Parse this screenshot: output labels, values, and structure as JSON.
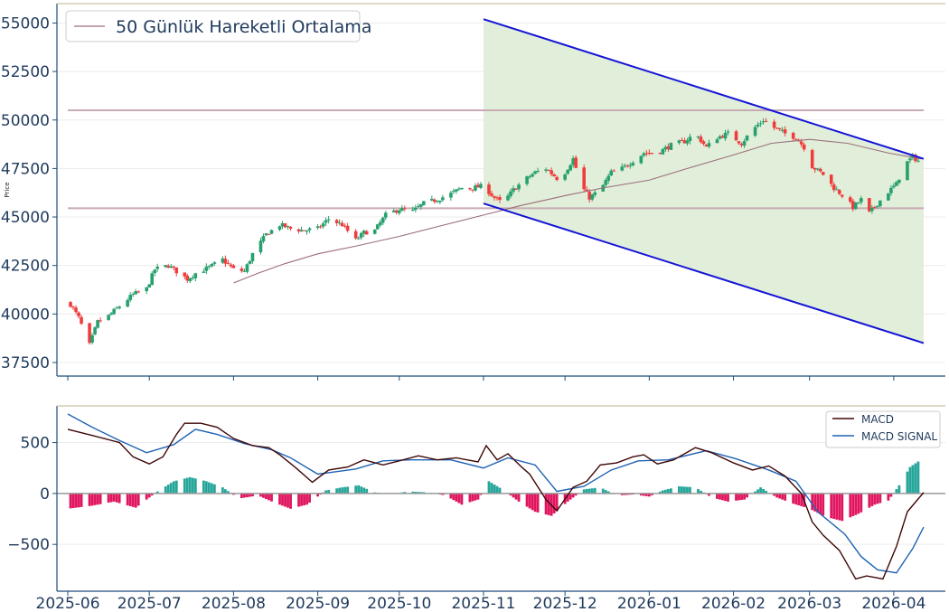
{
  "chart_data": [
    {
      "type": "candlestick",
      "ylabel": "Price",
      "ylim": [
        36800,
        56000
      ],
      "yticks": [
        37500,
        40000,
        42500,
        45000,
        47500,
        50000,
        52500,
        55000
      ],
      "ytick_labels": [
        "37500",
        "40000",
        "42500",
        "45000",
        "47500",
        "50000",
        "52500",
        "55000"
      ],
      "xrange": [
        "2025-05-28",
        "2026-04-20"
      ],
      "xticks": [
        "2025-06-01",
        "2025-07-01",
        "2025-08-01",
        "2025-09-01",
        "2025-10-01",
        "2025-11-01",
        "2025-12-01",
        "2026-01-01",
        "2026-02-01",
        "2026-03-01",
        "2026-04-01"
      ],
      "xtick_labels": [
        "2025-06",
        "2025-07",
        "2025-08",
        "2025-09",
        "2025-10",
        "2025-11",
        "2025-12",
        "2026-01",
        "2026-02",
        "2026-03",
        "2026-04"
      ],
      "legend": "50 Günlük Hareketli Ortalama",
      "legend_loc": "upper left",
      "close_path": [
        [
          "2025-06-02",
          40500
        ],
        [
          "2025-06-05",
          39800
        ],
        [
          "2025-06-09",
          38400
        ],
        [
          "2025-06-12",
          39600
        ],
        [
          "2025-06-16",
          39900
        ],
        [
          "2025-06-20",
          40400
        ],
        [
          "2025-06-25",
          41000
        ],
        [
          "2025-06-30",
          41300
        ],
        [
          "2025-07-03",
          42300
        ],
        [
          "2025-07-08",
          42500
        ],
        [
          "2025-07-11",
          42200
        ],
        [
          "2025-07-15",
          41800
        ],
        [
          "2025-07-18",
          42100
        ],
        [
          "2025-07-23",
          42400
        ],
        [
          "2025-07-28",
          42800
        ],
        [
          "2025-08-01",
          42300
        ],
        [
          "2025-08-05",
          42200
        ],
        [
          "2025-08-08",
          43100
        ],
        [
          "2025-08-13",
          44100
        ],
        [
          "2025-08-18",
          44600
        ],
        [
          "2025-08-22",
          44400
        ],
        [
          "2025-08-27",
          44300
        ],
        [
          "2025-09-01",
          44400
        ],
        [
          "2025-09-05",
          44900
        ],
        [
          "2025-09-10",
          44600
        ],
        [
          "2025-09-15",
          43800
        ],
        [
          "2025-09-18",
          44200
        ],
        [
          "2025-09-22",
          44300
        ],
        [
          "2025-09-26",
          45100
        ],
        [
          "2025-10-01",
          45400
        ],
        [
          "2025-10-06",
          45300
        ],
        [
          "2025-10-10",
          45700
        ],
        [
          "2025-10-15",
          45900
        ],
        [
          "2025-10-20",
          46200
        ],
        [
          "2025-10-24",
          46500
        ],
        [
          "2025-10-28",
          46500
        ],
        [
          "2025-11-01",
          46600
        ],
        [
          "2025-11-05",
          46000
        ],
        [
          "2025-11-08",
          45700
        ],
        [
          "2025-11-12",
          46400
        ],
        [
          "2025-11-16",
          46900
        ],
        [
          "2025-11-20",
          47300
        ],
        [
          "2025-11-24",
          47500
        ],
        [
          "2025-11-28",
          47000
        ],
        [
          "2025-12-01",
          47300
        ],
        [
          "2025-12-04",
          48000
        ],
        [
          "2025-12-07",
          46600
        ],
        [
          "2025-12-10",
          46000
        ],
        [
          "2025-12-14",
          46400
        ],
        [
          "2025-12-18",
          47300
        ],
        [
          "2025-12-22",
          47500
        ],
        [
          "2025-12-26",
          47900
        ],
        [
          "2025-12-30",
          48300
        ],
        [
          "2026-01-04",
          48300
        ],
        [
          "2026-01-09",
          48700
        ],
        [
          "2026-01-14",
          48900
        ],
        [
          "2026-01-18",
          49300
        ],
        [
          "2026-01-22",
          48600
        ],
        [
          "2026-01-26",
          49100
        ],
        [
          "2026-01-30",
          49300
        ],
        [
          "2026-02-04",
          48800
        ],
        [
          "2026-02-08",
          49500
        ],
        [
          "2026-02-12",
          50000
        ],
        [
          "2026-02-16",
          49600
        ],
        [
          "2026-02-20",
          49300
        ],
        [
          "2026-02-24",
          49100
        ],
        [
          "2026-02-27",
          48600
        ],
        [
          "2026-03-02",
          47600
        ],
        [
          "2026-03-06",
          47200
        ],
        [
          "2026-03-10",
          46500
        ],
        [
          "2026-03-14",
          46000
        ],
        [
          "2026-03-17",
          45500
        ],
        [
          "2026-03-20",
          45900
        ],
        [
          "2026-03-23",
          45200
        ],
        [
          "2026-03-26",
          45700
        ],
        [
          "2026-03-30",
          46300
        ],
        [
          "2026-04-02",
          46700
        ],
        [
          "2026-04-05",
          47700
        ],
        [
          "2026-04-08",
          48100
        ],
        [
          "2026-04-11",
          47800
        ]
      ],
      "moving_average_50": [
        [
          "2025-08-01",
          41600
        ],
        [
          "2025-08-10",
          42100
        ],
        [
          "2025-08-20",
          42600
        ],
        [
          "2025-09-01",
          43100
        ],
        [
          "2025-09-15",
          43500
        ],
        [
          "2025-10-01",
          44000
        ],
        [
          "2025-10-15",
          44500
        ],
        [
          "2025-11-01",
          45100
        ],
        [
          "2025-11-15",
          45600
        ],
        [
          "2025-12-01",
          46100
        ],
        [
          "2025-12-15",
          46500
        ],
        [
          "2026-01-01",
          46900
        ],
        [
          "2026-01-15",
          47500
        ],
        [
          "2026-02-01",
          48200
        ],
        [
          "2026-02-15",
          48800
        ],
        [
          "2026-03-01",
          49000
        ],
        [
          "2026-03-15",
          48800
        ],
        [
          "2026-03-30",
          48300
        ],
        [
          "2026-04-11",
          48000
        ]
      ],
      "horizontal_levels": [
        50500,
        45450
      ],
      "horizontal_levels_range": [
        "2025-06-01",
        "2026-04-12"
      ],
      "channel": {
        "upper": [
          [
            "2025-11-01",
            55200
          ],
          [
            "2026-04-12",
            48000
          ]
        ],
        "lower": [
          [
            "2025-11-01",
            45700
          ],
          [
            "2026-04-12",
            38500
          ]
        ],
        "fill_color": "#e1efda",
        "line_color": "#1414d6"
      },
      "colors": {
        "up": "#27a06e",
        "down": "#ef3d3d",
        "ma": "#9c6d7c",
        "level": "#c9aab5"
      }
    },
    {
      "type": "line",
      "ylim": [
        -960,
        860
      ],
      "yticks": [
        -500,
        0,
        500
      ],
      "ytick_labels": [
        "−500",
        "0",
        "500"
      ],
      "legend_loc": "upper right",
      "series": [
        {
          "name": "MACD",
          "color": "#3f0707",
          "points": [
            [
              "2025-06-01",
              630
            ],
            [
              "2025-06-10",
              570
            ],
            [
              "2025-06-20",
              500
            ],
            [
              "2025-06-25",
              360
            ],
            [
              "2025-07-01",
              290
            ],
            [
              "2025-07-06",
              360
            ],
            [
              "2025-07-11",
              580
            ],
            [
              "2025-07-14",
              690
            ],
            [
              "2025-07-20",
              690
            ],
            [
              "2025-07-26",
              650
            ],
            [
              "2025-08-01",
              540
            ],
            [
              "2025-08-08",
              470
            ],
            [
              "2025-08-14",
              450
            ],
            [
              "2025-08-18",
              380
            ],
            [
              "2025-08-24",
              250
            ],
            [
              "2025-08-30",
              110
            ],
            [
              "2025-09-05",
              230
            ],
            [
              "2025-09-12",
              260
            ],
            [
              "2025-09-18",
              330
            ],
            [
              "2025-09-25",
              280
            ],
            [
              "2025-10-01",
              320
            ],
            [
              "2025-10-08",
              370
            ],
            [
              "2025-10-15",
              330
            ],
            [
              "2025-10-22",
              350
            ],
            [
              "2025-10-30",
              310
            ],
            [
              "2025-11-02",
              470
            ],
            [
              "2025-11-06",
              330
            ],
            [
              "2025-11-10",
              390
            ],
            [
              "2025-11-15",
              260
            ],
            [
              "2025-11-18",
              190
            ],
            [
              "2025-11-24",
              -60
            ],
            [
              "2025-11-28",
              -170
            ],
            [
              "2025-12-04",
              60
            ],
            [
              "2025-12-09",
              120
            ],
            [
              "2025-12-14",
              280
            ],
            [
              "2025-12-20",
              300
            ],
            [
              "2025-12-26",
              360
            ],
            [
              "2025-12-30",
              380
            ],
            [
              "2026-01-04",
              290
            ],
            [
              "2026-01-10",
              330
            ],
            [
              "2026-01-18",
              450
            ],
            [
              "2026-01-24",
              400
            ],
            [
              "2026-02-01",
              300
            ],
            [
              "2026-02-08",
              230
            ],
            [
              "2026-02-14",
              270
            ],
            [
              "2026-02-20",
              170
            ],
            [
              "2026-02-26",
              0
            ],
            [
              "2026-03-02",
              -280
            ],
            [
              "2026-03-06",
              -410
            ],
            [
              "2026-03-12",
              -560
            ],
            [
              "2026-03-18",
              -840
            ],
            [
              "2026-03-22",
              -810
            ],
            [
              "2026-03-28",
              -840
            ],
            [
              "2026-04-02",
              -520
            ],
            [
              "2026-04-06",
              -180
            ],
            [
              "2026-04-12",
              10
            ]
          ]
        },
        {
          "name": "MACD SIGNAL",
          "color": "#1f62b4",
          "points": [
            [
              "2025-06-01",
              780
            ],
            [
              "2025-06-10",
              650
            ],
            [
              "2025-06-20",
              520
            ],
            [
              "2025-06-30",
              400
            ],
            [
              "2025-07-10",
              480
            ],
            [
              "2025-07-18",
              630
            ],
            [
              "2025-07-26",
              580
            ],
            [
              "2025-08-05",
              490
            ],
            [
              "2025-08-15",
              430
            ],
            [
              "2025-08-22",
              350
            ],
            [
              "2025-09-01",
              190
            ],
            [
              "2025-09-15",
              240
            ],
            [
              "2025-09-25",
              320
            ],
            [
              "2025-10-05",
              330
            ],
            [
              "2025-10-20",
              330
            ],
            [
              "2025-11-01",
              250
            ],
            [
              "2025-11-10",
              350
            ],
            [
              "2025-11-20",
              280
            ],
            [
              "2025-11-28",
              20
            ],
            [
              "2025-12-08",
              70
            ],
            [
              "2025-12-18",
              230
            ],
            [
              "2025-12-28",
              320
            ],
            [
              "2026-01-08",
              330
            ],
            [
              "2026-01-22",
              420
            ],
            [
              "2026-02-02",
              340
            ],
            [
              "2026-02-14",
              230
            ],
            [
              "2026-02-24",
              120
            ],
            [
              "2026-03-04",
              -180
            ],
            [
              "2026-03-14",
              -400
            ],
            [
              "2026-03-20",
              -620
            ],
            [
              "2026-03-26",
              -750
            ],
            [
              "2026-04-02",
              -780
            ],
            [
              "2026-04-08",
              -540
            ],
            [
              "2026-04-12",
              -330
            ]
          ]
        }
      ],
      "histogram": [
        [
          "2025-06-01",
          -150
        ],
        [
          "2025-06-10",
          -120
        ],
        [
          "2025-06-18",
          -80
        ],
        [
          "2025-06-26",
          -140
        ],
        [
          "2025-07-04",
          20
        ],
        [
          "2025-07-10",
          120
        ],
        [
          "2025-07-16",
          160
        ],
        [
          "2025-07-22",
          120
        ],
        [
          "2025-07-28",
          60
        ],
        [
          "2025-08-03",
          -50
        ],
        [
          "2025-08-10",
          -20
        ],
        [
          "2025-08-16",
          -90
        ],
        [
          "2025-08-22",
          -150
        ],
        [
          "2025-08-28",
          -110
        ],
        [
          "2025-09-04",
          30
        ],
        [
          "2025-09-10",
          60
        ],
        [
          "2025-09-16",
          80
        ],
        [
          "2025-09-22",
          10
        ],
        [
          "2025-09-28",
          -10
        ],
        [
          "2025-10-04",
          20
        ],
        [
          "2025-10-12",
          10
        ],
        [
          "2025-10-18",
          -20
        ],
        [
          "2025-10-24",
          -110
        ],
        [
          "2025-10-30",
          -60
        ],
        [
          "2025-11-03",
          120
        ],
        [
          "2025-11-08",
          40
        ],
        [
          "2025-11-14",
          -80
        ],
        [
          "2025-11-20",
          -180
        ],
        [
          "2025-11-26",
          -220
        ],
        [
          "2025-12-02",
          -80
        ],
        [
          "2025-12-08",
          40
        ],
        [
          "2025-12-14",
          60
        ],
        [
          "2025-12-20",
          -20
        ],
        [
          "2025-12-26",
          -10
        ],
        [
          "2026-01-01",
          -30
        ],
        [
          "2026-01-06",
          30
        ],
        [
          "2026-01-12",
          70
        ],
        [
          "2026-01-18",
          60
        ],
        [
          "2026-01-24",
          -40
        ],
        [
          "2026-01-30",
          -80
        ],
        [
          "2026-02-05",
          -60
        ],
        [
          "2026-02-11",
          60
        ],
        [
          "2026-02-17",
          -40
        ],
        [
          "2026-02-23",
          -100
        ],
        [
          "2026-03-01",
          -150
        ],
        [
          "2026-03-07",
          -230
        ],
        [
          "2026-03-13",
          -270
        ],
        [
          "2026-03-19",
          -200
        ],
        [
          "2026-03-25",
          -110
        ],
        [
          "2026-03-30",
          -70
        ],
        [
          "2026-04-03",
          80
        ],
        [
          "2026-04-07",
          260
        ],
        [
          "2026-04-12",
          350
        ]
      ],
      "histogram_colors": {
        "positive": "#26a69a",
        "negative": "#e0155f"
      }
    }
  ]
}
